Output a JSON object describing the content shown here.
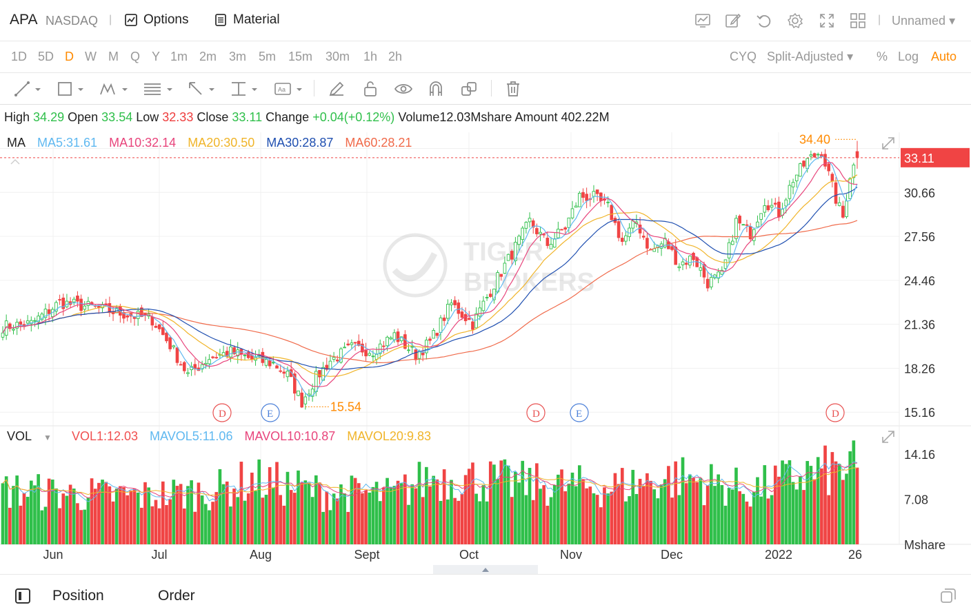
{
  "header": {
    "symbol": "APA",
    "exchange": "NASDAQ",
    "options_label": "Options",
    "material_label": "Material",
    "layout_name": "Unnamed",
    "icons": [
      "chart-icon",
      "edit-icon",
      "undo-icon",
      "settings-icon",
      "fullscreen-icon",
      "grid-layout-icon",
      "caret-down-icon"
    ]
  },
  "periods": [
    {
      "label": "1D",
      "active": false
    },
    {
      "label": "5D",
      "active": false
    },
    {
      "label": "D",
      "active": true
    },
    {
      "label": "W",
      "active": false
    },
    {
      "label": "M",
      "active": false
    },
    {
      "label": "Q",
      "active": false
    },
    {
      "label": "Y",
      "active": false
    },
    {
      "label": "1m",
      "active": false
    },
    {
      "label": "2m",
      "active": false
    },
    {
      "label": "3m",
      "active": false
    },
    {
      "label": "5m",
      "active": false
    },
    {
      "label": "15m",
      "active": false
    },
    {
      "label": "30m",
      "active": false
    },
    {
      "label": "1h",
      "active": false
    },
    {
      "label": "2h",
      "active": false
    }
  ],
  "chart_options": {
    "cyq": "CYQ",
    "adjust": "Split-Adjusted",
    "percent": "%",
    "log": "Log",
    "auto": "Auto"
  },
  "quote": {
    "high_label": "High",
    "high": "34.29",
    "open_label": "Open",
    "open": "33.54",
    "low_label": "Low",
    "low": "32.33",
    "close_label": "Close",
    "close": "33.11",
    "change_label": "Change",
    "change": "+0.04(+0.12%)",
    "volume_label": "Volume",
    "volume": "12.03Mshare",
    "amount_label": "Amount",
    "amount": "402.22M"
  },
  "ma_legend": {
    "label": "MA",
    "items": [
      {
        "text": "MA5:31.61",
        "color": "#5fb8f0"
      },
      {
        "text": "MA10:32.14",
        "color": "#e8457c"
      },
      {
        "text": "MA20:30.50",
        "color": "#f0b429"
      },
      {
        "text": "MA30:28.87",
        "color": "#1f4fb0"
      },
      {
        "text": "MA60:28.21",
        "color": "#f06a4a"
      }
    ]
  },
  "vol_legend": {
    "label": "VOL",
    "items": [
      {
        "text": "VOL1:12.03",
        "color": "#f05050"
      },
      {
        "text": "MAVOL5:11.06",
        "color": "#5fb8f0"
      },
      {
        "text": "MAVOL10:10.87",
        "color": "#e8457c"
      },
      {
        "text": "MAVOL20:9.83",
        "color": "#f0b429"
      }
    ]
  },
  "watermark": {
    "line1": "TIGER",
    "line2": "BROKERS"
  },
  "colors": {
    "up": "#2fbf4a",
    "down": "#f04444",
    "accent": "#ff8a00",
    "last_price_bg": "#f04444"
  },
  "chart_data": {
    "type": "candlestick",
    "price_axis_ticks": [
      "30.66",
      "27.56",
      "24.46",
      "21.36",
      "18.26",
      "15.16"
    ],
    "price_ylim": [
      14.2,
      34.9
    ],
    "last_price": "33.11",
    "high_marker": "34.40",
    "low_marker": "15.54",
    "volume_axis_ticks": [
      "14.16",
      "7.08"
    ],
    "volume_unit": "Mshare",
    "volume_ylim": [
      0,
      17.5
    ],
    "x_tick_labels": [
      "Jun",
      "Jul",
      "Aug",
      "Sept",
      "Oct",
      "Nov",
      "Dec",
      "2022",
      "26"
    ],
    "event_markers": [
      {
        "letter": "D",
        "type": "dividend"
      },
      {
        "letter": "E",
        "type": "earnings"
      },
      {
        "letter": "D",
        "type": "dividend"
      },
      {
        "letter": "E",
        "type": "earnings"
      },
      {
        "letter": "D",
        "type": "dividend"
      }
    ],
    "close_keypoints": [
      [
        0,
        21.2
      ],
      [
        8,
        21.4
      ],
      [
        16,
        22.9
      ],
      [
        24,
        22.6
      ],
      [
        30,
        22.3
      ],
      [
        36,
        22.0
      ],
      [
        42,
        21.7
      ],
      [
        47,
        19.9
      ],
      [
        52,
        17.8
      ],
      [
        58,
        19.0
      ],
      [
        64,
        19.4
      ],
      [
        70,
        18.9
      ],
      [
        76,
        18.6
      ],
      [
        80,
        17.8
      ],
      [
        84,
        15.9
      ],
      [
        88,
        17.6
      ],
      [
        92,
        18.8
      ],
      [
        98,
        19.7
      ],
      [
        104,
        19.5
      ],
      [
        110,
        20.6
      ],
      [
        116,
        19.2
      ],
      [
        120,
        20.1
      ],
      [
        126,
        22.8
      ],
      [
        132,
        21.4
      ],
      [
        138,
        24.2
      ],
      [
        144,
        26.8
      ],
      [
        148,
        28.6
      ],
      [
        153,
        27.0
      ],
      [
        158,
        28.2
      ],
      [
        162,
        30.4
      ],
      [
        166,
        30.3
      ],
      [
        170,
        29.6
      ],
      [
        174,
        27.2
      ],
      [
        178,
        28.6
      ],
      [
        182,
        26.5
      ],
      [
        186,
        27.2
      ],
      [
        190,
        25.6
      ],
      [
        194,
        26.1
      ],
      [
        198,
        24.3
      ],
      [
        202,
        24.8
      ],
      [
        206,
        28.6
      ],
      [
        210,
        27.8
      ],
      [
        214,
        30.1
      ],
      [
        218,
        29.2
      ],
      [
        222,
        31.6
      ],
      [
        226,
        32.9
      ],
      [
        230,
        33.6
      ],
      [
        234,
        30.2
      ],
      [
        236,
        28.9
      ],
      [
        238,
        31.9
      ],
      [
        240,
        33.11
      ]
    ],
    "volume_keypoints": [
      [
        0,
        8.6
      ],
      [
        20,
        7.9
      ],
      [
        40,
        7.6
      ],
      [
        60,
        8.5
      ],
      [
        70,
        10.2
      ],
      [
        90,
        8.2
      ],
      [
        110,
        7.8
      ],
      [
        120,
        10.6
      ],
      [
        130,
        10.4
      ],
      [
        150,
        9.4
      ],
      [
        170,
        9.0
      ],
      [
        190,
        10.6
      ],
      [
        210,
        8.5
      ],
      [
        226,
        11.1
      ],
      [
        240,
        12.03
      ]
    ]
  },
  "bottom": {
    "position_label": "Position",
    "order_label": "Order"
  }
}
